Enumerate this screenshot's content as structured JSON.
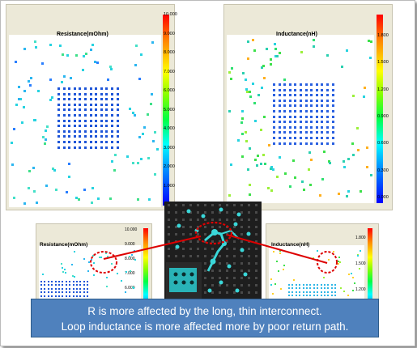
{
  "panels": {
    "resistance": {
      "title": "Resistance(mOhm)",
      "ticks": [
        "10.000",
        "9.000",
        "8.000",
        "7.000",
        "6.000",
        "5.000",
        "4.000",
        "3.000",
        "2.000",
        "1.000",
        "0.000"
      ]
    },
    "inductance": {
      "title": "Inductance(nH)",
      "ticks": [
        "1.800",
        "1.500",
        "1.200",
        "0.900",
        "0.600",
        "0.300",
        "0.000"
      ]
    },
    "resistance_small": {
      "title": "Resistance(mOhm)",
      "ticks": [
        "10.000",
        "9.000",
        "8.000",
        "7.000",
        "6.000"
      ]
    },
    "inductance_small": {
      "title": "Inductance(nH)",
      "ticks": [
        "1.800",
        "1.500",
        "1.200"
      ]
    }
  },
  "callout": {
    "line1": "R is more affected by the long, thin interconnect.",
    "line2": "Loop inductance is more affected more by poor return path."
  },
  "colors": {
    "callout_bg": "#4f81bd",
    "highlight": "#dd0000",
    "panel_bg": "#ece9d8"
  }
}
